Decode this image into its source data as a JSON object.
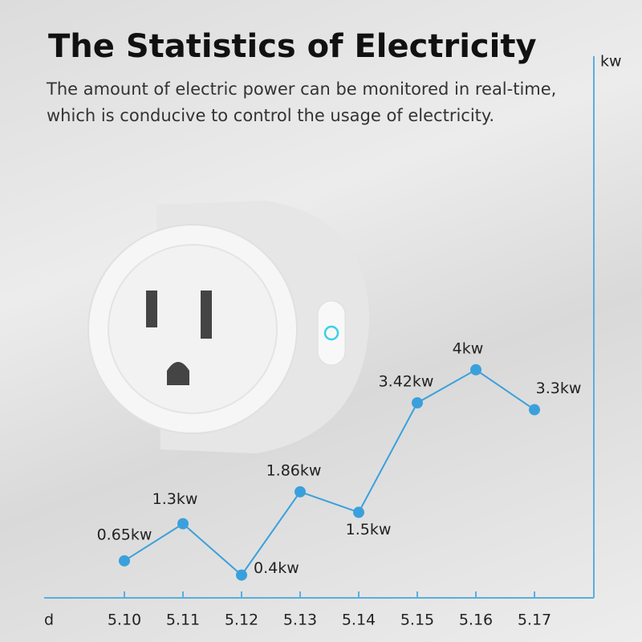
{
  "title": "The Statistics of Electricity",
  "subtitle": [
    "The amount of electric power can be monitored in real-time,",
    "which is conducive to control the usage of electricity."
  ],
  "chart_data": {
    "type": "line",
    "x_label": "d",
    "y_label": "kw",
    "categories": [
      "5.10",
      "5.11",
      "5.12",
      "5.13",
      "5.14",
      "5.15",
      "5.16",
      "5.17"
    ],
    "values": [
      0.65,
      1.3,
      0.4,
      1.86,
      1.5,
      3.42,
      4,
      3.3
    ],
    "value_labels": [
      "0.65kw",
      "1.3kw",
      "0.4kw",
      "1.86kw",
      "1.5kw",
      "3.42kw",
      "4kw",
      "3.3kw"
    ],
    "color": "#3aa0dc",
    "ylim": [
      0,
      9.5
    ]
  }
}
